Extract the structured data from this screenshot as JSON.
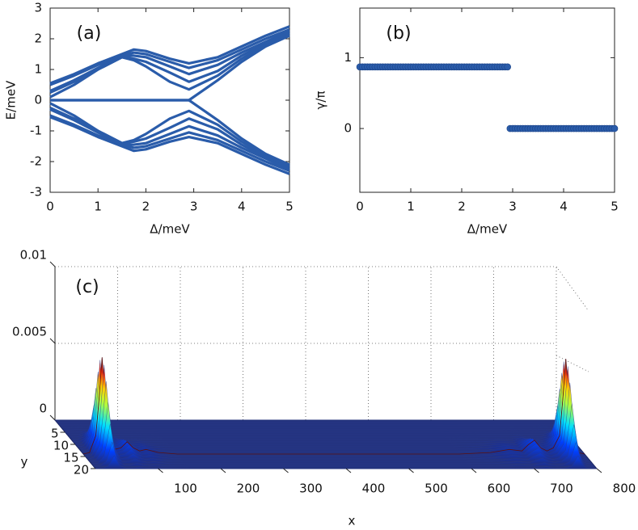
{
  "chart_data": [
    {
      "type": "line",
      "annotation": "(a)",
      "xlabel": "Δ/meV",
      "ylabel": "E/meV",
      "xlim": [
        0,
        5
      ],
      "ylim": [
        -3,
        3
      ],
      "xticks": [
        0,
        1,
        2,
        3,
        4,
        5
      ],
      "yticks": [
        -3,
        -2,
        -1,
        0,
        1,
        2,
        3
      ],
      "x": [
        0,
        0.5,
        1,
        1.5,
        1.75,
        2,
        2.5,
        2.9,
        3.5,
        4,
        4.5,
        5
      ],
      "series": [
        {
          "color": "#2a5caa",
          "values": [
            0.55,
            0.85,
            1.2,
            1.5,
            1.65,
            1.6,
            1.35,
            1.2,
            1.4,
            1.75,
            2.1,
            2.4
          ]
        },
        {
          "color": "#2a5caa",
          "values": [
            0.5,
            0.8,
            1.15,
            1.45,
            1.55,
            1.5,
            1.25,
            1.05,
            1.3,
            1.65,
            2.0,
            2.3
          ]
        },
        {
          "color": "#2a5caa",
          "values": [
            0.3,
            0.65,
            1.05,
            1.45,
            1.45,
            1.4,
            1.1,
            0.85,
            1.15,
            1.55,
            1.9,
            2.25
          ]
        },
        {
          "color": "#2a5caa",
          "values": [
            0.25,
            0.6,
            1.0,
            1.4,
            1.35,
            1.25,
            0.9,
            0.6,
            0.95,
            1.45,
            1.85,
            2.2
          ]
        },
        {
          "color": "#2a5caa",
          "values": [
            0.1,
            0.5,
            1.0,
            1.4,
            1.3,
            1.1,
            0.6,
            0.35,
            0.8,
            1.35,
            1.8,
            2.15
          ]
        },
        {
          "color": "#2a5caa",
          "values": [
            0,
            0,
            0,
            0,
            0,
            0,
            0,
            0,
            0.65,
            1.25,
            1.75,
            2.1
          ]
        },
        {
          "color": "#2a5caa",
          "values": [
            -0.55,
            -0.85,
            -1.2,
            -1.5,
            -1.65,
            -1.6,
            -1.35,
            -1.2,
            -1.4,
            -1.75,
            -2.1,
            -2.4
          ]
        },
        {
          "color": "#2a5caa",
          "values": [
            -0.5,
            -0.8,
            -1.15,
            -1.45,
            -1.55,
            -1.5,
            -1.25,
            -1.05,
            -1.3,
            -1.65,
            -2.0,
            -2.3
          ]
        },
        {
          "color": "#2a5caa",
          "values": [
            -0.3,
            -0.65,
            -1.05,
            -1.45,
            -1.45,
            -1.4,
            -1.1,
            -0.85,
            -1.15,
            -1.55,
            -1.9,
            -2.25
          ]
        },
        {
          "color": "#2a5caa",
          "values": [
            -0.25,
            -0.6,
            -1.0,
            -1.4,
            -1.35,
            -1.25,
            -0.9,
            -0.6,
            -0.95,
            -1.45,
            -1.85,
            -2.2
          ]
        },
        {
          "color": "#2a5caa",
          "values": [
            -0.1,
            -0.5,
            -1.0,
            -1.4,
            -1.3,
            -1.1,
            -0.6,
            -0.35,
            -0.8,
            -1.35,
            -1.8,
            -2.15
          ]
        },
        {
          "color": "#2a5caa",
          "values": [
            0,
            0,
            0,
            0,
            0,
            0,
            0,
            0,
            -0.65,
            -1.25,
            -1.75,
            -2.1
          ]
        }
      ]
    },
    {
      "type": "scatter",
      "annotation": "(b)",
      "xlabel": "Δ/meV",
      "ylabel": "γ/π",
      "xlim": [
        0,
        5
      ],
      "ylim": [
        -0.9,
        1.7
      ],
      "xticks": [
        0,
        1,
        2,
        3,
        4,
        5
      ],
      "yticks": [
        0,
        1
      ],
      "color": "#2a5caa",
      "x": [
        0,
        0.05,
        0.1,
        0.15,
        0.2,
        0.25,
        0.3,
        0.35,
        0.4,
        0.45,
        0.5,
        0.55,
        0.6,
        0.65,
        0.7,
        0.75,
        0.8,
        0.85,
        0.9,
        0.95,
        1,
        1.05,
        1.1,
        1.15,
        1.2,
        1.25,
        1.3,
        1.35,
        1.4,
        1.45,
        1.5,
        1.55,
        1.6,
        1.65,
        1.7,
        1.75,
        1.8,
        1.85,
        1.9,
        1.95,
        2,
        2.05,
        2.1,
        2.15,
        2.2,
        2.25,
        2.3,
        2.35,
        2.4,
        2.45,
        2.5,
        2.55,
        2.6,
        2.65,
        2.7,
        2.75,
        2.8,
        2.85,
        2.9,
        2.95,
        3,
        3.05,
        3.1,
        3.15,
        3.2,
        3.25,
        3.3,
        3.35,
        3.4,
        3.45,
        3.5,
        3.55,
        3.6,
        3.65,
        3.7,
        3.75,
        3.8,
        3.85,
        3.9,
        3.95,
        4,
        4.05,
        4.1,
        4.15,
        4.2,
        4.25,
        4.3,
        4.35,
        4.4,
        4.45,
        4.5,
        4.55,
        4.6,
        4.65,
        4.7,
        4.75,
        4.8,
        4.85,
        4.9,
        4.95,
        5
      ],
      "values": [
        0.87,
        0.87,
        0.87,
        0.87,
        0.87,
        0.87,
        0.87,
        0.87,
        0.87,
        0.87,
        0.87,
        0.87,
        0.87,
        0.87,
        0.87,
        0.87,
        0.87,
        0.87,
        0.87,
        0.87,
        0.87,
        0.87,
        0.87,
        0.87,
        0.87,
        0.87,
        0.87,
        0.87,
        0.87,
        0.87,
        0.87,
        0.87,
        0.87,
        0.87,
        0.87,
        0.87,
        0.87,
        0.87,
        0.87,
        0.87,
        0.87,
        0.87,
        0.87,
        0.87,
        0.87,
        0.87,
        0.87,
        0.87,
        0.87,
        0.87,
        0.87,
        0.87,
        0.87,
        0.87,
        0.87,
        0.87,
        0.87,
        0.87,
        0.87,
        0,
        0,
        0,
        0,
        0,
        0,
        0,
        0,
        0,
        0,
        0,
        0,
        0,
        0,
        0,
        0,
        0,
        0,
        0,
        0,
        0,
        0,
        0,
        0,
        0,
        0,
        0,
        0,
        0,
        0,
        0,
        0,
        0,
        0,
        0,
        0,
        0,
        0,
        0,
        0,
        0,
        0
      ]
    },
    {
      "type": "surface",
      "annotation": "(c)",
      "xlabel": "x",
      "ylabel": "y",
      "xlim": [
        0,
        800
      ],
      "ylim": [
        0,
        20
      ],
      "zlim": [
        0,
        0.01
      ],
      "xticks": [
        100,
        200,
        300,
        400,
        500,
        600,
        700,
        800
      ],
      "yticks": [
        5,
        10,
        15,
        20
      ],
      "zticks": [
        0,
        0.005,
        0.01
      ],
      "x": [
        0,
        10,
        20,
        25,
        30,
        35,
        40,
        50,
        60,
        70,
        80,
        90,
        100,
        120,
        150,
        200,
        400,
        600,
        650,
        680,
        700,
        710,
        720,
        730,
        740,
        750,
        760,
        765,
        770,
        775,
        780,
        785,
        790,
        800
      ],
      "values": [
        0,
        0.0001,
        0.0012,
        0.0035,
        0.0063,
        0.0035,
        0.0012,
        0.0003,
        0.0004,
        0.0008,
        0.0004,
        0.0002,
        0.0003,
        0.0001,
        0,
        0,
        0,
        0,
        0.0001,
        0.0003,
        0.0002,
        0.0006,
        0.0009,
        0.0004,
        0.0002,
        0.0004,
        0.0012,
        0.0035,
        0.0062,
        0.0035,
        0.0012,
        0.0003,
        0.0001,
        0
      ]
    }
  ]
}
